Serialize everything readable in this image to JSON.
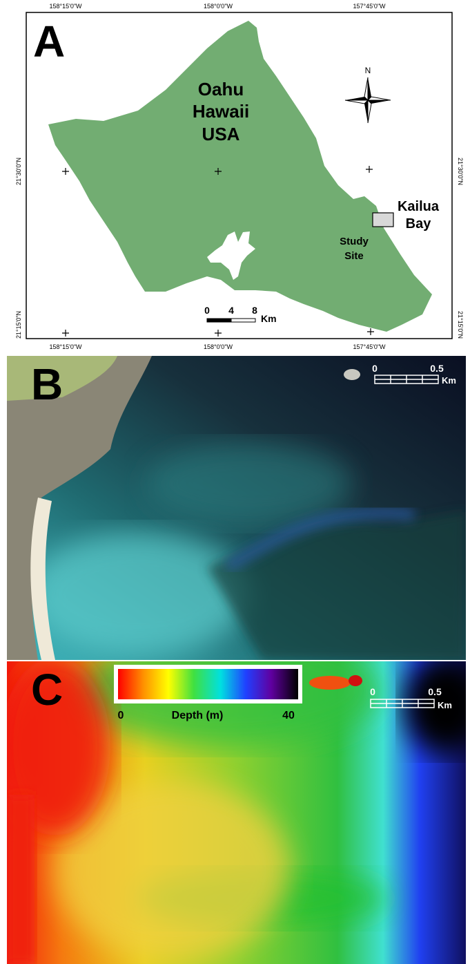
{
  "panel_a": {
    "label": "A",
    "top_coords": [
      "158°15'0\"W",
      "158°0'0\"W",
      "157°45'0\"W"
    ],
    "bottom_coords": [
      "158°15'0\"W",
      "158°0'0\"W",
      "157°45'0\"W"
    ],
    "left_coords": [
      "21°30'0\"N",
      "21°15'0\"N"
    ],
    "right_coords": [
      "21°30'0\"N",
      "21°15'0\"N"
    ],
    "island_name": [
      "Oahu",
      "Hawaii",
      "USA"
    ],
    "north": "N",
    "scale": {
      "ticks": [
        "0",
        "4",
        "8"
      ],
      "unit": "Km"
    },
    "site_name": [
      "Kailua",
      "Bay"
    ],
    "site_label": [
      "Study",
      "Site"
    ]
  },
  "panel_b": {
    "label": "B",
    "scale": {
      "ticks": [
        "0",
        "0.5"
      ],
      "unit": "Km"
    }
  },
  "panel_c": {
    "label": "C",
    "colorbar": {
      "min": "0",
      "title": "Depth (m)",
      "max": "40"
    },
    "scale": {
      "ticks": [
        "0",
        "0.5"
      ],
      "unit": "Km"
    }
  }
}
